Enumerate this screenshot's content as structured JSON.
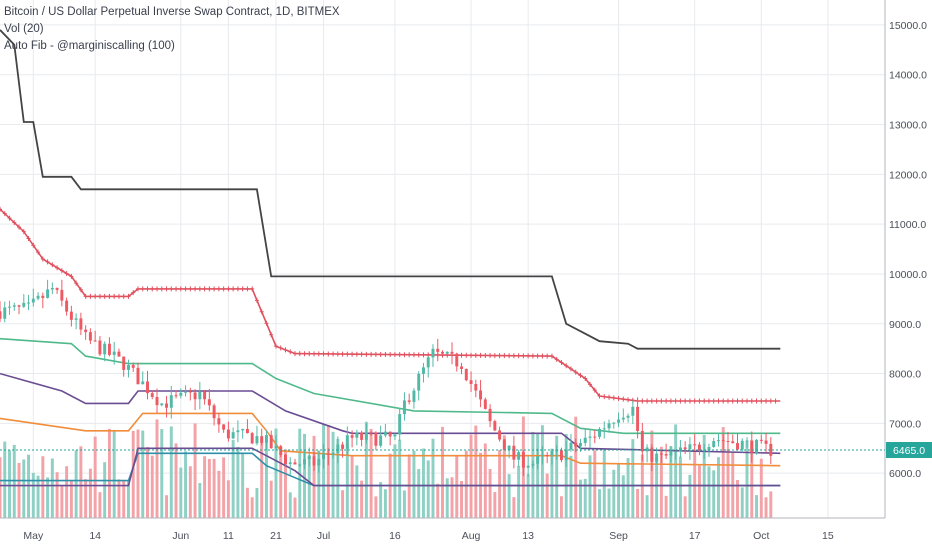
{
  "header": {
    "title": "Bitcoin / US Dollar Perpetual Inverse Swap Contract, 1D, BITMEX",
    "indicator_volume": "Vol (20)",
    "indicator_fib": "Auto Fib - @marginiscalling (100)"
  },
  "price_label": "6465.0",
  "colors": {
    "up": "#53b9a7",
    "down": "#ee5a64",
    "up_vol": "#8fd0c4",
    "down_vol": "#f3a3a8",
    "fib_1": "#444444",
    "fib_0786": "#e0515f",
    "fib_0618": "#4fb98b",
    "fib_05": "#6a4c93",
    "fib_0382": "#f08c3a",
    "fib_0236": "#2d8fa8",
    "fib_0": "#6a4c93",
    "price_line": "#26a69a",
    "grid": "#e8eaee",
    "axis_text": "#4b4f5a"
  },
  "chart_data": {
    "type": "candlestick",
    "title": "Bitcoin / US Dollar Perpetual Inverse Swap Contract, 1D, BITMEX",
    "y_axis": {
      "ticks": [
        "15000.0",
        "14000.0",
        "13000.0",
        "12000.0",
        "11000.0",
        "10000.0",
        "9000.0",
        "8000.0",
        "7000.0",
        "6000.0"
      ],
      "range": [
        5100,
        15500
      ]
    },
    "x_axis": {
      "ticks": [
        {
          "label": "May",
          "date": "2018-05-01"
        },
        {
          "label": "14",
          "date": "2018-05-14"
        },
        {
          "label": "Jun",
          "date": "2018-06-01"
        },
        {
          "label": "11",
          "date": "2018-06-11"
        },
        {
          "label": "21",
          "date": "2018-06-21"
        },
        {
          "label": "Jul",
          "date": "2018-07-01"
        },
        {
          "label": "16",
          "date": "2018-07-16"
        },
        {
          "label": "Aug",
          "date": "2018-08-01"
        },
        {
          "label": "13",
          "date": "2018-08-13"
        },
        {
          "label": "Sep",
          "date": "2018-09-01"
        },
        {
          "label": "17",
          "date": "2018-09-17"
        },
        {
          "label": "Oct",
          "date": "2018-10-01"
        },
        {
          "label": "15",
          "date": "2018-10-15"
        }
      ],
      "range": [
        "2018-04-24",
        "2018-10-27"
      ]
    },
    "last_price": 6465.0,
    "candle_key_closes": [
      {
        "date": "2018-04-24",
        "close": 9250
      },
      {
        "date": "2018-04-30",
        "close": 9300
      },
      {
        "date": "2018-05-05",
        "close": 9700
      },
      {
        "date": "2018-05-12",
        "close": 8700
      },
      {
        "date": "2018-05-20",
        "close": 8200
      },
      {
        "date": "2018-05-28",
        "close": 7400
      },
      {
        "date": "2018-06-05",
        "close": 7600
      },
      {
        "date": "2018-06-10",
        "close": 6800
      },
      {
        "date": "2018-06-18",
        "close": 6700
      },
      {
        "date": "2018-06-24",
        "close": 6200
      },
      {
        "date": "2018-06-29",
        "close": 6200
      },
      {
        "date": "2018-07-07",
        "close": 6700
      },
      {
        "date": "2018-07-16",
        "close": 6700
      },
      {
        "date": "2018-07-18",
        "close": 7400
      },
      {
        "date": "2018-07-24",
        "close": 8400
      },
      {
        "date": "2018-07-30",
        "close": 8200
      },
      {
        "date": "2018-08-05",
        "close": 7000
      },
      {
        "date": "2018-08-10",
        "close": 6300
      },
      {
        "date": "2018-08-14",
        "close": 6200
      },
      {
        "date": "2018-08-20",
        "close": 6400
      },
      {
        "date": "2018-08-26",
        "close": 6700
      },
      {
        "date": "2018-09-01",
        "close": 7200
      },
      {
        "date": "2018-09-04",
        "close": 7300
      },
      {
        "date": "2018-09-06",
        "close": 6400
      },
      {
        "date": "2018-09-10",
        "close": 6300
      },
      {
        "date": "2018-09-17",
        "close": 6500
      },
      {
        "date": "2018-09-21",
        "close": 6700
      },
      {
        "date": "2018-09-27",
        "close": 6600
      },
      {
        "date": "2018-10-03",
        "close": 6465
      }
    ],
    "fib_levels": [
      {
        "level": "1",
        "points": [
          [
            "2018-04-24",
            14900
          ],
          [
            "2018-04-27",
            14600
          ],
          [
            "2018-04-29",
            13050
          ],
          [
            "2018-05-01",
            13050
          ],
          [
            "2018-05-03",
            11950
          ],
          [
            "2018-05-09",
            11950
          ],
          [
            "2018-05-11",
            11700
          ],
          [
            "2018-06-17",
            11700
          ],
          [
            "2018-06-20",
            9950
          ],
          [
            "2018-08-18",
            9950
          ],
          [
            "2018-08-21",
            9000
          ],
          [
            "2018-08-25",
            8800
          ],
          [
            "2018-08-28",
            8650
          ],
          [
            "2018-09-03",
            8600
          ],
          [
            "2018-09-05",
            8500
          ],
          [
            "2018-10-05",
            8500
          ]
        ]
      },
      {
        "level": "0.786",
        "points": [
          [
            "2018-04-24",
            11300
          ],
          [
            "2018-04-29",
            10850
          ],
          [
            "2018-05-03",
            10300
          ],
          [
            "2018-05-09",
            9950
          ],
          [
            "2018-05-12",
            9550
          ],
          [
            "2018-05-21",
            9550
          ],
          [
            "2018-05-23",
            9700
          ],
          [
            "2018-06-16",
            9700
          ],
          [
            "2018-06-21",
            8550
          ],
          [
            "2018-06-25",
            8400
          ],
          [
            "2018-08-18",
            8350
          ],
          [
            "2018-08-25",
            7900
          ],
          [
            "2018-08-28",
            7550
          ],
          [
            "2018-09-05",
            7450
          ],
          [
            "2018-10-05",
            7450
          ]
        ]
      },
      {
        "level": "0.618",
        "points": [
          [
            "2018-04-24",
            8700
          ],
          [
            "2018-05-09",
            8600
          ],
          [
            "2018-05-12",
            8350
          ],
          [
            "2018-05-21",
            8200
          ],
          [
            "2018-06-16",
            8200
          ],
          [
            "2018-06-21",
            7900
          ],
          [
            "2018-06-29",
            7600
          ],
          [
            "2018-07-20",
            7250
          ],
          [
            "2018-08-18",
            7200
          ],
          [
            "2018-08-24",
            6900
          ],
          [
            "2018-09-02",
            6800
          ],
          [
            "2018-10-05",
            6800
          ]
        ]
      },
      {
        "level": "0.5",
        "points": [
          [
            "2018-04-24",
            8000
          ],
          [
            "2018-05-07",
            7650
          ],
          [
            "2018-05-12",
            7400
          ],
          [
            "2018-05-21",
            7400
          ],
          [
            "2018-05-23",
            7650
          ],
          [
            "2018-06-16",
            7650
          ],
          [
            "2018-06-23",
            7250
          ],
          [
            "2018-07-05",
            6850
          ],
          [
            "2018-07-07",
            6800
          ],
          [
            "2018-08-20",
            6800
          ],
          [
            "2018-08-24",
            6500
          ],
          [
            "2018-10-05",
            6400
          ]
        ]
      },
      {
        "level": "0.382",
        "points": [
          [
            "2018-04-24",
            7100
          ],
          [
            "2018-05-12",
            6850
          ],
          [
            "2018-05-21",
            6850
          ],
          [
            "2018-05-24",
            7200
          ],
          [
            "2018-06-16",
            7200
          ],
          [
            "2018-06-19",
            6850
          ],
          [
            "2018-06-22",
            6450
          ],
          [
            "2018-07-07",
            6350
          ],
          [
            "2018-08-20",
            6350
          ],
          [
            "2018-08-24",
            6200
          ],
          [
            "2018-10-05",
            6150
          ]
        ]
      },
      {
        "level": "0.236",
        "points": [
          [
            "2018-04-24",
            5850
          ],
          [
            "2018-05-21",
            5850
          ],
          [
            "2018-05-23",
            6400
          ],
          [
            "2018-06-16",
            6400
          ],
          [
            "2018-06-19",
            6150
          ],
          [
            "2018-06-24",
            5950
          ],
          [
            "2018-06-29",
            5750
          ],
          [
            "2018-08-20",
            5750
          ],
          [
            "2018-10-05",
            5750
          ]
        ]
      },
      {
        "level": "0",
        "points": [
          [
            "2018-04-24",
            5750
          ],
          [
            "2018-05-21",
            5750
          ],
          [
            "2018-05-23",
            6500
          ],
          [
            "2018-06-16",
            6500
          ],
          [
            "2018-06-20",
            6300
          ],
          [
            "2018-06-25",
            6050
          ],
          [
            "2018-06-29",
            5750
          ],
          [
            "2018-08-20",
            5750
          ],
          [
            "2018-10-05",
            5750
          ]
        ]
      }
    ]
  }
}
